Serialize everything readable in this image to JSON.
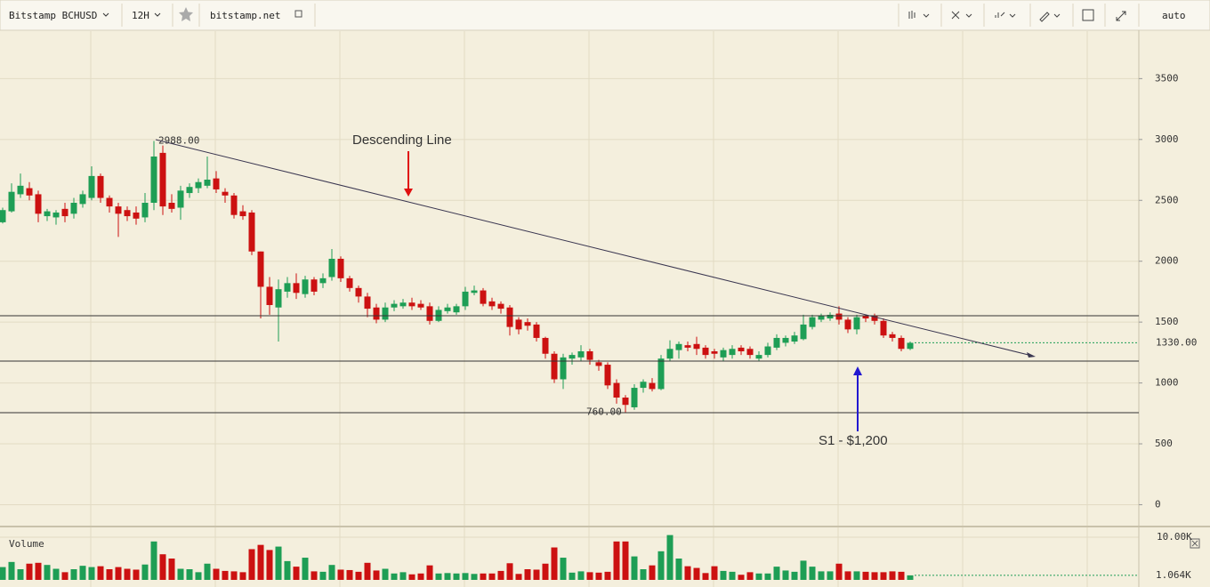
{
  "toolbar": {
    "symbol": "Bitstamp BCHUSD",
    "interval": "12H",
    "source": "bitstamp.net",
    "scale_mode": "auto"
  },
  "chart_data": {
    "type": "candlestick",
    "grid": true,
    "up_color": "#1e9e55",
    "down_color": "#cc1111",
    "open": [
      2320,
      2410,
      2550,
      2600,
      2550,
      2370,
      2360,
      2430,
      2390,
      2470,
      2520,
      2700,
      2520,
      2450,
      2420,
      2400,
      2360,
      2480,
      2890,
      2480,
      2440,
      2560,
      2600,
      2620,
      2680,
      2570,
      2540,
      2410,
      2400,
      2080,
      1790,
      1620,
      1750,
      1820,
      1730,
      1850,
      1820,
      1870,
      2020,
      1860,
      1780,
      1710,
      1620,
      1520,
      1620,
      1630,
      1660,
      1650,
      1630,
      1510,
      1590,
      1580,
      1630,
      1740,
      1760,
      1670,
      1650,
      1620,
      1520,
      1500,
      1480,
      1370,
      1240,
      1030,
      1200,
      1210,
      1260,
      1170,
      1150,
      1000,
      880,
      800,
      960,
      1000,
      950,
      1200,
      1270,
      1310,
      1320,
      1290,
      1260,
      1210,
      1230,
      1290,
      1280,
      1200,
      1230,
      1290,
      1330,
      1340,
      1360,
      1460,
      1520,
      1530,
      1570,
      1520,
      1440,
      1550,
      1550,
      1510,
      1400,
      1370,
      1280
    ],
    "high": [
      2440,
      2640,
      2720,
      2650,
      2580,
      2430,
      2420,
      2480,
      2520,
      2580,
      2780,
      2720,
      2540,
      2480,
      2450,
      2450,
      2560,
      2988,
      2950,
      2550,
      2620,
      2640,
      2680,
      2860,
      2740,
      2600,
      2560,
      2460,
      2420,
      2080,
      1870,
      1850,
      1870,
      1900,
      1880,
      1870,
      1900,
      2100,
      2040,
      1880,
      1800,
      1740,
      1650,
      1660,
      1680,
      1690,
      1700,
      1680,
      1660,
      1630,
      1650,
      1650,
      1790,
      1800,
      1780,
      1700,
      1670,
      1640,
      1540,
      1530,
      1500,
      1380,
      1260,
      1240,
      1250,
      1310,
      1280,
      1190,
      1170,
      1030,
      900,
      990,
      1030,
      1040,
      1230,
      1350,
      1340,
      1340,
      1380,
      1310,
      1280,
      1290,
      1310,
      1310,
      1300,
      1260,
      1330,
      1400,
      1390,
      1420,
      1560,
      1560,
      1570,
      1580,
      1630,
      1540,
      1560,
      1560,
      1570,
      1530,
      1420,
      1390,
      1340
    ],
    "low": [
      2310,
      2400,
      2520,
      2500,
      2320,
      2330,
      2300,
      2320,
      2350,
      2440,
      2500,
      2480,
      2400,
      2200,
      2330,
      2300,
      2320,
      2420,
      2380,
      2400,
      2340,
      2520,
      2560,
      2600,
      2560,
      2480,
      2350,
      2340,
      2050,
      1530,
      1560,
      1340,
      1700,
      1690,
      1700,
      1720,
      1780,
      1840,
      1830,
      1750,
      1660,
      1540,
      1490,
      1500,
      1590,
      1610,
      1600,
      1600,
      1480,
      1500,
      1570,
      1560,
      1600,
      1720,
      1630,
      1600,
      1570,
      1390,
      1400,
      1430,
      1340,
      1200,
      1000,
      950,
      1150,
      1180,
      1150,
      1100,
      950,
      830,
      760,
      780,
      920,
      930,
      940,
      1180,
      1200,
      1260,
      1230,
      1200,
      1200,
      1180,
      1200,
      1230,
      1200,
      1180,
      1210,
      1270,
      1300,
      1320,
      1350,
      1440,
      1500,
      1510,
      1480,
      1410,
      1400,
      1500,
      1480,
      1370,
      1340,
      1260,
      1270
    ],
    "close": [
      2420,
      2570,
      2620,
      2540,
      2390,
      2410,
      2400,
      2370,
      2480,
      2550,
      2700,
      2520,
      2450,
      2390,
      2370,
      2350,
      2480,
      2860,
      2450,
      2430,
      2580,
      2610,
      2650,
      2670,
      2590,
      2540,
      2380,
      2370,
      2080,
      1790,
      1640,
      1770,
      1820,
      1740,
      1850,
      1750,
      1860,
      2020,
      1860,
      1780,
      1710,
      1610,
      1520,
      1620,
      1650,
      1660,
      1630,
      1620,
      1510,
      1600,
      1620,
      1630,
      1750,
      1760,
      1650,
      1630,
      1610,
      1460,
      1440,
      1470,
      1370,
      1240,
      1030,
      1210,
      1230,
      1260,
      1190,
      1140,
      980,
      880,
      820,
      960,
      1010,
      950,
      1200,
      1280,
      1320,
      1290,
      1280,
      1230,
      1240,
      1270,
      1280,
      1260,
      1230,
      1230,
      1300,
      1370,
      1370,
      1390,
      1480,
      1540,
      1550,
      1560,
      1520,
      1440,
      1540,
      1530,
      1510,
      1390,
      1370,
      1280,
      1330
    ],
    "volume": [
      3000,
      4200,
      2500,
      3800,
      4000,
      3500,
      2600,
      1800,
      2500,
      3300,
      3000,
      3200,
      2500,
      3000,
      2600,
      2400,
      3600,
      9000,
      6000,
      5000,
      2600,
      2500,
      1800,
      3800,
      2600,
      2100,
      2000,
      1800,
      7200,
      8200,
      7000,
      7800,
      4400,
      3100,
      5200,
      2000,
      1900,
      3500,
      2400,
      2300,
      1900,
      4000,
      2200,
      2600,
      1500,
      1800,
      1300,
      1500,
      3400,
      1500,
      1600,
      1500,
      1600,
      1400,
      1500,
      1500,
      2100,
      3900,
      1400,
      2500,
      2400,
      3800,
      7600,
      5200,
      1700,
      2000,
      1800,
      1700,
      1900,
      9000,
      9000,
      5500,
      2500,
      3400,
      6700,
      10500,
      5000,
      3200,
      2800,
      1600,
      3200,
      2100,
      1900,
      1200,
      1800,
      1500,
      1500,
      3100,
      2200,
      1900,
      4500,
      3100,
      2000,
      2000,
      3800,
      2000,
      2000,
      1900,
      1800,
      1800,
      2000,
      1900,
      1064
    ],
    "ylim": [
      -150,
      3890
    ],
    "yticks": [
      0,
      500,
      1000,
      1500,
      2000,
      2500,
      3000,
      3500
    ],
    "volume_title": "Volume",
    "volume_ylim": [
      0,
      11460
    ],
    "volume_ticks": [
      {
        "value": 10000,
        "label": "10.00K"
      }
    ],
    "volume_last_label": "1.064K",
    "last_price_label": "1330.00",
    "high_label": {
      "value": 2988,
      "label": "2988.00"
    },
    "low_label": {
      "value": 760,
      "label": "760.00"
    },
    "annotations": [
      "Descending Line",
      "S1 - $1,200"
    ]
  }
}
